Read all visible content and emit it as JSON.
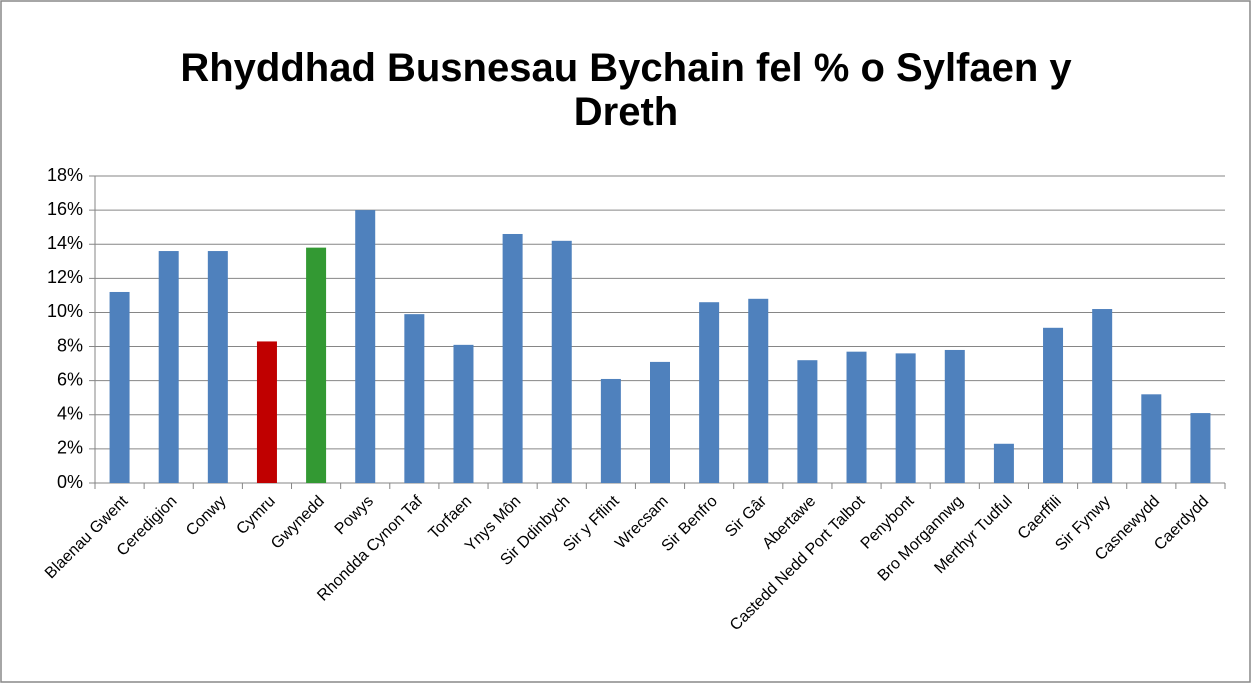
{
  "chart_data": {
    "type": "bar",
    "title": "Rhyddhad Busnesau Bychain fel % o Sylfaen y Dreth",
    "categories": [
      "Blaenau Gwent",
      "Ceredigion",
      "Conwy",
      "Cymru",
      "Gwynedd",
      "Powys",
      "Rhondda Cynon Taf",
      "Torfaen",
      "Ynys Môn",
      "Sir Ddinbych",
      "Sir y Fflint",
      "Wrecsam",
      "Sir Benfro",
      "Sir Gâr",
      "Abertawe",
      "Castedd Nedd Port Talbot",
      "Penybont",
      "Bro Morgannwg",
      "Merthyr Tudful",
      "Caerffili",
      "Sir Fynwy",
      "Casnewydd",
      "Caerdydd"
    ],
    "values": [
      11.2,
      13.6,
      13.6,
      8.3,
      13.8,
      16.0,
      9.9,
      8.1,
      14.6,
      14.2,
      6.1,
      7.1,
      10.6,
      10.8,
      7.2,
      7.7,
      7.6,
      7.8,
      2.3,
      9.1,
      10.2,
      5.2,
      4.1
    ],
    "colors": [
      "#4f81bd",
      "#4f81bd",
      "#4f81bd",
      "#c00000",
      "#339933",
      "#4f81bd",
      "#4f81bd",
      "#4f81bd",
      "#4f81bd",
      "#4f81bd",
      "#4f81bd",
      "#4f81bd",
      "#4f81bd",
      "#4f81bd",
      "#4f81bd",
      "#4f81bd",
      "#4f81bd",
      "#4f81bd",
      "#4f81bd",
      "#4f81bd",
      "#4f81bd",
      "#4f81bd",
      "#4f81bd"
    ],
    "ylim": [
      0,
      18
    ],
    "yticks": [
      {
        "value": 0,
        "label": "0%"
      },
      {
        "value": 2,
        "label": "2%"
      },
      {
        "value": 4,
        "label": "4%"
      },
      {
        "value": 6,
        "label": "6%"
      },
      {
        "value": 8,
        "label": "8%"
      },
      {
        "value": 10,
        "label": "10%"
      },
      {
        "value": 12,
        "label": "12%"
      },
      {
        "value": 14,
        "label": "14%"
      },
      {
        "value": 16,
        "label": "16%"
      },
      {
        "value": 18,
        "label": "18%"
      }
    ],
    "grid": true
  }
}
